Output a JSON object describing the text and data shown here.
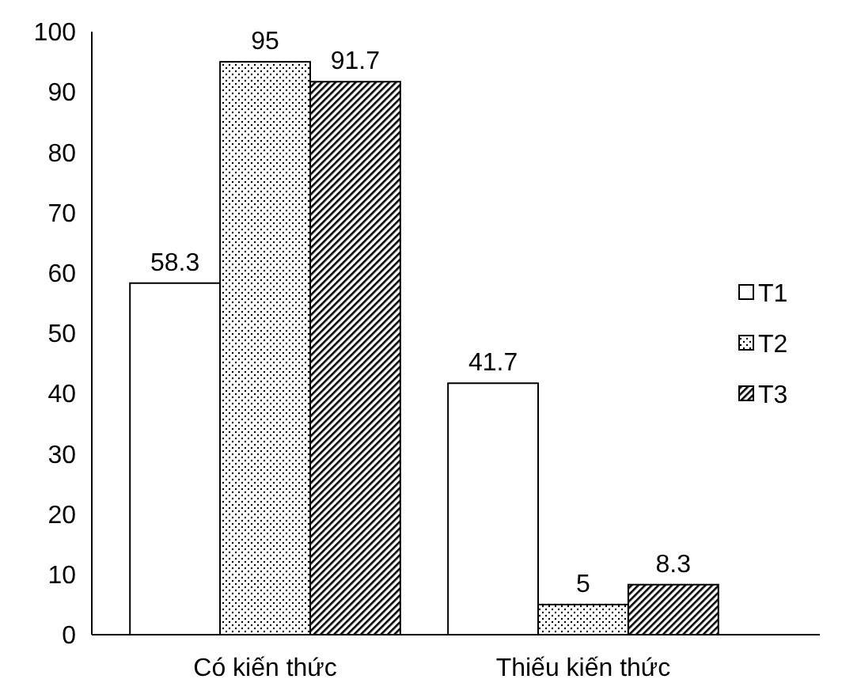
{
  "chart_data": {
    "type": "bar",
    "categories": [
      "Có kiến thức",
      "Thiếu kiến thức"
    ],
    "series": [
      {
        "name": "T1",
        "color": "#ffffff",
        "values": [
          58.3,
          41.7
        ]
      },
      {
        "name": "T2",
        "color": "#000000",
        "values": [
          95,
          5
        ]
      },
      {
        "name": "T3",
        "color": "#000000",
        "values": [
          91.7,
          8.3
        ]
      }
    ],
    "ylim": [
      0,
      100
    ],
    "yticks": [
      0,
      10,
      20,
      30,
      40,
      50,
      60,
      70,
      80,
      90,
      100
    ],
    "grid": false,
    "legend": "right",
    "data_labels": true
  }
}
